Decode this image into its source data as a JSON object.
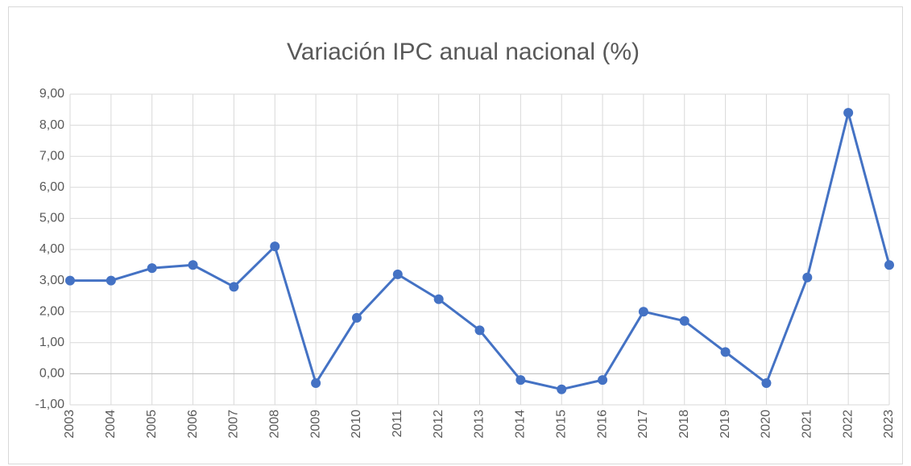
{
  "chart_data": {
    "type": "line",
    "title": "Variación IPC anual nacional (%)",
    "categories": [
      "2003",
      "2004",
      "2005",
      "2006",
      "2007",
      "2008",
      "2009",
      "2010",
      "2011",
      "2012",
      "2013",
      "2014",
      "2015",
      "2016",
      "2017",
      "2018",
      "2019",
      "2020",
      "2021",
      "2022",
      "2023"
    ],
    "series": [
      {
        "name": "Variación IPC",
        "color": "#4472c4",
        "values": [
          3.0,
          3.0,
          3.4,
          3.5,
          2.8,
          4.1,
          -0.3,
          1.8,
          3.2,
          2.4,
          1.4,
          -0.2,
          -0.5,
          -0.2,
          2.0,
          1.7,
          0.7,
          -0.3,
          3.1,
          8.4,
          3.5
        ]
      }
    ],
    "ylim": [
      -1,
      9
    ],
    "yticks": [
      {
        "value": -1,
        "label": "-1,00"
      },
      {
        "value": 0,
        "label": "0,00"
      },
      {
        "value": 1,
        "label": "1,00"
      },
      {
        "value": 2,
        "label": "2,00"
      },
      {
        "value": 3,
        "label": "3,00"
      },
      {
        "value": 4,
        "label": "4,00"
      },
      {
        "value": 5,
        "label": "5,00"
      },
      {
        "value": 6,
        "label": "6,00"
      },
      {
        "value": 7,
        "label": "7,00"
      },
      {
        "value": 8,
        "label": "8,00"
      },
      {
        "value": 9,
        "label": "9,00"
      }
    ],
    "grid": true
  }
}
